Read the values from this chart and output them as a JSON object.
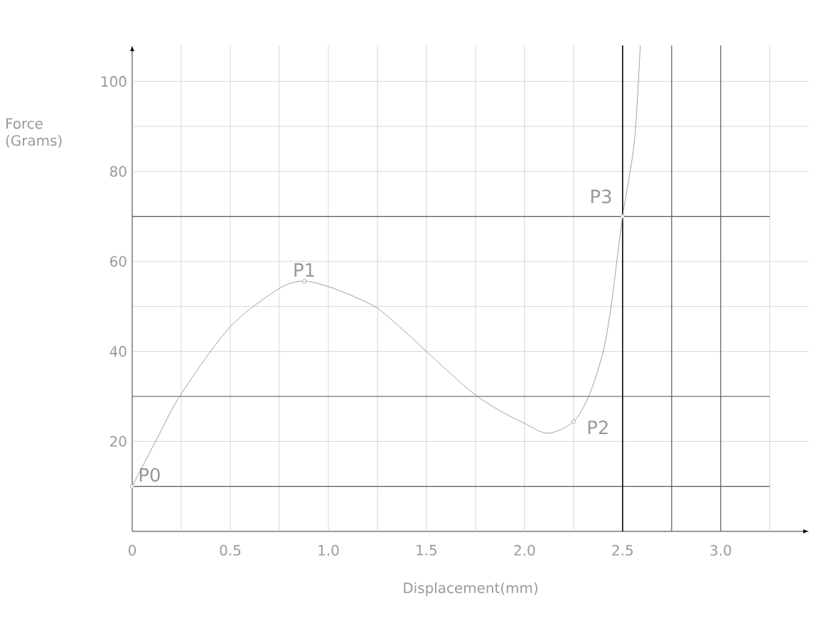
{
  "chart_data": {
    "type": "line",
    "xlabel": "Displacement(mm)",
    "ylabel": "Force (Grams)",
    "xlim": [
      0,
      3.45
    ],
    "ylim": [
      0,
      108
    ],
    "xticks": [
      0,
      {
        "value": 0.25,
        "label": null
      },
      0.5,
      {
        "value": 0.75,
        "label": null
      },
      {
        "value": 1,
        "label": "1.0"
      },
      {
        "value": 1.25,
        "label": null
      },
      1.5,
      {
        "value": 1.75,
        "label": null
      },
      {
        "value": 2,
        "label": "2.0"
      },
      {
        "value": 2.25,
        "label": null
      },
      2.5,
      {
        "value": 3,
        "label": "3.0"
      },
      {
        "value": 3.25,
        "label": null
      }
    ],
    "yticks": [
      20,
      40,
      {
        "value": 50,
        "label": null
      },
      60,
      80,
      {
        "value": 90,
        "label": null
      },
      100
    ],
    "grid": true,
    "series": [
      {
        "type": "line",
        "color": "#888888",
        "marker": "none",
        "x": [
          0,
          0.125,
          0.25,
          0.5,
          0.75,
          0.877,
          1.0,
          1.125,
          1.25,
          1.375,
          1.5,
          1.625,
          1.75,
          1.875,
          2.0,
          2.12,
          2.25,
          2.33,
          2.4,
          2.44,
          2.5,
          2.56,
          2.59
        ],
        "values": [
          10,
          20.5,
          30.6,
          45.5,
          54,
          55.6,
          54.4,
          52.3,
          49.6,
          45,
          40,
          35,
          30.3,
          26.8,
          24,
          21.8,
          24.4,
          30.3,
          39.8,
          49.6,
          70,
          86.6,
          108
        ]
      },
      {
        "type": "scatter",
        "color": "#888888",
        "marker": "circle",
        "x": [
          0,
          0.877,
          2.25,
          2.5
        ],
        "values": [
          10,
          55.6,
          24.4,
          70
        ]
      }
    ],
    "ref_lines": [
      {
        "axis": "y",
        "value": 10,
        "color": "#555555"
      },
      {
        "axis": "y",
        "value": 30,
        "color": "#555555"
      },
      {
        "axis": "y",
        "value": 70,
        "color": "#555555"
      },
      {
        "axis": "x",
        "value": 2.5,
        "color": "#000000"
      },
      {
        "axis": "x",
        "value": 2.75,
        "color": "#555555"
      },
      {
        "axis": "x",
        "value": 3,
        "color": "#555555"
      }
    ],
    "annotations": [
      {
        "text": "P0",
        "x": 0,
        "y": 10
      },
      {
        "text": "P1",
        "x": 0.877,
        "y": 55.6
      },
      {
        "text": "P2",
        "x": 2.25,
        "y": 24.4
      },
      {
        "text": "P3",
        "x": 2.5,
        "y": 70
      }
    ]
  }
}
